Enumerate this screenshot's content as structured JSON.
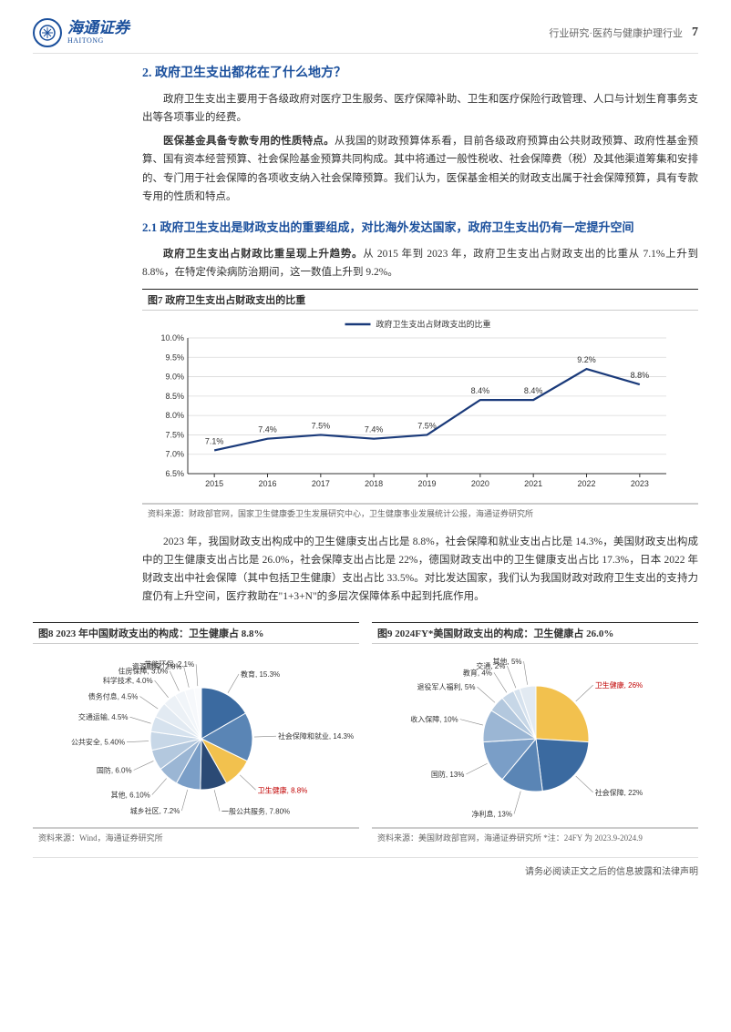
{
  "header": {
    "logo_cn": "海通证券",
    "logo_en": "HAITONG",
    "category": "行业研究·医药与健康护理行业",
    "page_num": "7"
  },
  "section2": {
    "title": "2. 政府卫生支出都花在了什么地方？",
    "p1": "政府卫生支出主要用于各级政府对医疗卫生服务、医疗保障补助、卫生和医疗保险行政管理、人口与计划生育事务支出等各项事业的经费。",
    "p2_bold": "医保基金具备专款专用的性质特点。",
    "p2": "从我国的财政预算体系看，目前各级政府预算由公共财政预算、政府性基金预算、国有资本经营预算、社会保险基金预算共同构成。其中将通过一般性税收、社会保障费（税）及其他渠道筹集和安排的、专门用于社会保障的各项收支纳入社会保障预算。我们认为，医保基金相关的财政支出属于社会保障预算，具有专款专用的性质和特点。"
  },
  "section21": {
    "title": "2.1 政府卫生支出是财政支出的重要组成，对比海外发达国家，政府卫生支出仍有一定提升空间",
    "p1_bold": "政府卫生支出占财政比重呈现上升趋势。",
    "p1": "从 2015 年到 2023 年，政府卫生支出占财政支出的比重从 7.1%上升到 8.8%，在特定传染病防治期间，这一数值上升到 9.2%。"
  },
  "chart7": {
    "title": "图7  政府卫生支出占财政支出的比重",
    "type": "line",
    "legend": "政府卫生支出占财政支出的比重",
    "years": [
      "2015",
      "2016",
      "2017",
      "2018",
      "2019",
      "2020",
      "2021",
      "2022",
      "2023"
    ],
    "values": [
      7.1,
      7.4,
      7.5,
      7.4,
      7.5,
      8.4,
      8.4,
      9.2,
      8.8
    ],
    "labels": [
      "7.1%",
      "7.4%",
      "7.5%",
      "7.4%",
      "7.5%",
      "8.4%",
      "8.4%",
      "9.2%",
      "8.8%"
    ],
    "ylim": [
      6.5,
      10.0
    ],
    "ytick_step": 0.5,
    "yticks": [
      "6.5%",
      "7.0%",
      "7.5%",
      "8.0%",
      "8.5%",
      "9.0%",
      "9.5%",
      "10.0%"
    ],
    "line_color": "#1a3a7a",
    "line_width": 2.2,
    "grid_color": "#d9d9d9",
    "axis_color": "#333333",
    "label_fontsize": 9,
    "source": "资料来源：财政部官网，国家卫生健康委卫生发展研究中心，卫生健康事业发展统计公报，海通证券研究所"
  },
  "para_mid": "2023 年，我国财政支出构成中的卫生健康支出占比是 8.8%，社会保障和就业支出占比是 14.3%，美国财政支出构成中的卫生健康支出占比是 26.0%，社会保障支出占比是 22%，德国财政支出中的卫生健康支出占比 17.3%，日本 2022 年财政支出中社会保障（其中包括卫生健康）支出占比 33.5%。对比发达国家，我们认为我国财政对政府卫生支出的支持力度仍有上升空间，医疗救助在\"1+3+N\"的多层次保障体系中起到托底作用。",
  "chart8": {
    "title": "图8  2023 年中国财政支出的构成：卫生健康占 8.8%",
    "type": "pie",
    "slices": [
      {
        "label": "教育, 15.3%",
        "value": 15.3,
        "color": "#3b6aa0"
      },
      {
        "label": "社会保障和就业, 14.3%",
        "value": 14.3,
        "color": "#5a85b5"
      },
      {
        "label": "卫生健康, 8.8%",
        "value": 8.8,
        "color": "#f2c14e",
        "highlight": true
      },
      {
        "label": "一般公共服务, 7.80%",
        "value": 7.8,
        "color": "#2b4a75"
      },
      {
        "label": "城乡社区, 7.2%",
        "value": 7.2,
        "color": "#7a9ec7"
      },
      {
        "label": "其他, 6.10%",
        "value": 6.1,
        "color": "#9bb6d4"
      },
      {
        "label": "国防, 6.0%",
        "value": 6.0,
        "color": "#b3c8de"
      },
      {
        "label": "公共安全, 5.40%",
        "value": 5.4,
        "color": "#c7d7e7"
      },
      {
        "label": "交通运输, 4.5%",
        "value": 4.5,
        "color": "#d6e2ee"
      },
      {
        "label": "债务付息, 4.5%",
        "value": 4.5,
        "color": "#e2eaf2"
      },
      {
        "label": "科学技术, 4.0%",
        "value": 4.0,
        "color": "#ecf1f6"
      },
      {
        "label": "住房保障, 3.0%",
        "value": 3.0,
        "color": "#f1f5f9"
      },
      {
        "label": "资源勘探, 2.8%",
        "value": 2.8,
        "color": "#f6f8fb"
      },
      {
        "label": "节能环保, 2.1%",
        "value": 2.1,
        "color": "#fafbfd"
      }
    ],
    "source": "资料来源：Wind，海通证券研究所"
  },
  "chart9": {
    "title": "图9  2024FY*美国财政支出的构成：卫生健康占 26.0%",
    "type": "pie",
    "slices": [
      {
        "label": "卫生健康, 26%",
        "value": 26,
        "color": "#f2c14e",
        "highlight": true
      },
      {
        "label": "社会保障, 22%",
        "value": 22,
        "color": "#3b6aa0"
      },
      {
        "label": "净利息, 13%",
        "value": 13,
        "color": "#5a85b5"
      },
      {
        "label": "国防, 13%",
        "value": 13,
        "color": "#7a9ec7"
      },
      {
        "label": "收入保障, 10%",
        "value": 10,
        "color": "#9bb6d4"
      },
      {
        "label": "退役军人福利, 5%",
        "value": 5,
        "color": "#b3c8de"
      },
      {
        "label": "教育, 4%",
        "value": 4,
        "color": "#c7d7e7"
      },
      {
        "label": "交通, 2%",
        "value": 2,
        "color": "#d6e2ee"
      },
      {
        "label": "其他, 5%",
        "value": 5,
        "color": "#e2eaf2"
      }
    ],
    "source": "资料来源：美国财政部官网，海通证券研究所  *注：24FY 为 2023.9-2024.9"
  },
  "footer": "请务必阅读正文之后的信息披露和法律声明"
}
